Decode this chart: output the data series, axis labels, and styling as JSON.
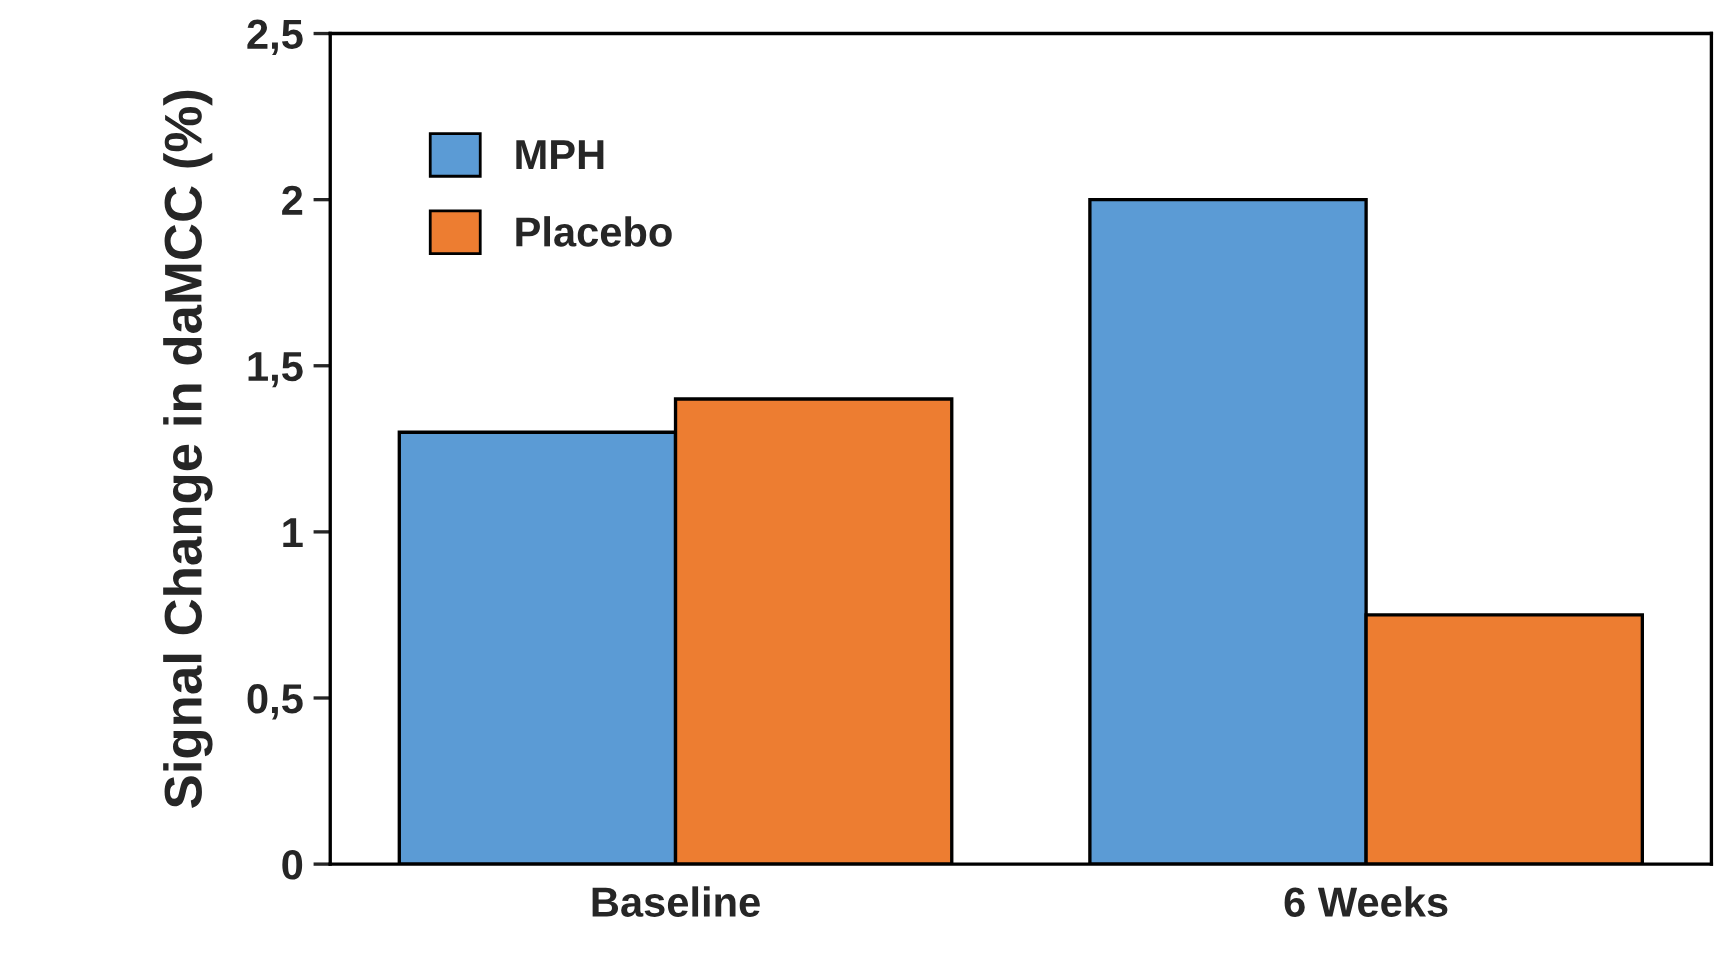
{
  "chart_data": {
    "type": "bar",
    "ylabel": "Signal Change in daMCC (%)",
    "categories": [
      "Baseline",
      "6 Weeks"
    ],
    "series": [
      {
        "name": "MPH",
        "color": "#5b9bd5",
        "values": [
          1.3,
          2.0
        ]
      },
      {
        "name": "Placebo",
        "color": "#ed7d31",
        "values": [
          1.4,
          0.75
        ]
      }
    ],
    "ylim": [
      0,
      2.5
    ],
    "yticks": [
      0,
      {
        "value": 0.5,
        "label": "0,5"
      },
      1,
      {
        "value": 1.5,
        "label": "1,5"
      },
      2,
      {
        "value": 2.5,
        "label": "2,5"
      }
    ],
    "grid": false,
    "legend": "top left"
  }
}
